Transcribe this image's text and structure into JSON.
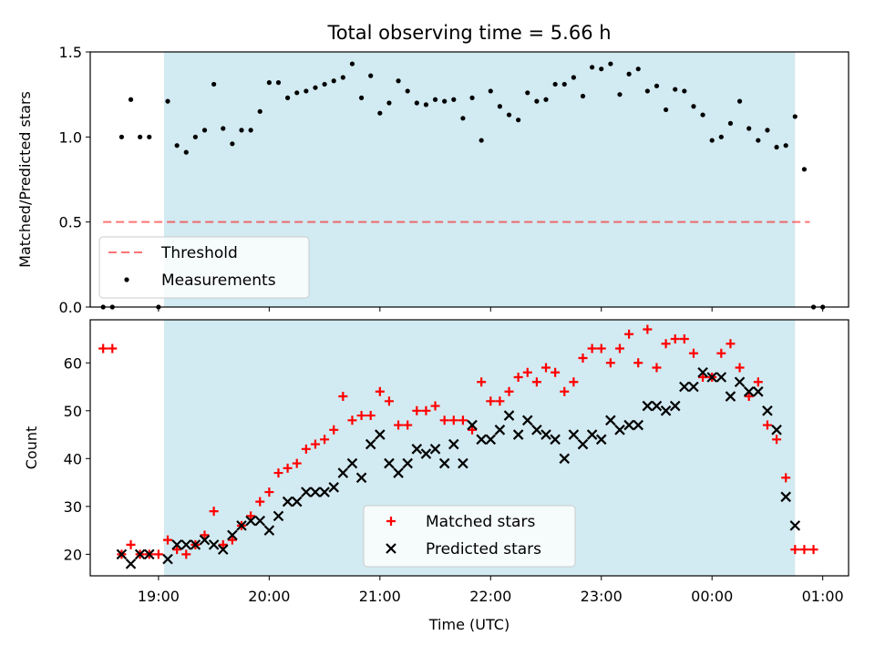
{
  "title": "Total observing time = 5.66 h",
  "colors": {
    "band": "#add8e6",
    "threshold": "#ff0000",
    "measurement": "#000000",
    "matched": "#ff0000",
    "predicted": "#000000"
  },
  "chart_data": [
    {
      "type": "scatter",
      "ylabel": "Matched/Predicted stars",
      "ylim": [
        0,
        1.5
      ],
      "yticks": [
        0.0,
        0.5,
        1.0,
        1.5
      ],
      "ytick_labels": [
        "0.0",
        "0.5",
        "1.0",
        "1.5"
      ],
      "legend": {
        "position": "lower-left"
      },
      "observing_window": [
        "19:03",
        "00:45"
      ],
      "threshold": {
        "name": "Threshold",
        "value": 0.5,
        "x_range": [
          "18:30",
          "00:53"
        ],
        "style": "dashed"
      },
      "series": [
        {
          "name": "Measurements",
          "points": [
            [
              "18:30",
              0.0
            ],
            [
              "18:35",
              0.0
            ],
            [
              "18:40",
              1.0
            ],
            [
              "18:45",
              1.22
            ],
            [
              "18:50",
              1.0
            ],
            [
              "18:55",
              1.0
            ],
            [
              "19:00",
              0.0
            ],
            [
              "19:05",
              1.21
            ],
            [
              "19:10",
              0.95
            ],
            [
              "19:15",
              0.91
            ],
            [
              "19:20",
              1.0
            ],
            [
              "19:25",
              1.04
            ],
            [
              "19:30",
              1.31
            ],
            [
              "19:35",
              1.05
            ],
            [
              "19:40",
              0.96
            ],
            [
              "19:45",
              1.04
            ],
            [
              "19:50",
              1.04
            ],
            [
              "19:55",
              1.15
            ],
            [
              "20:00",
              1.32
            ],
            [
              "20:05",
              1.32
            ],
            [
              "20:10",
              1.23
            ],
            [
              "20:15",
              1.26
            ],
            [
              "20:20",
              1.27
            ],
            [
              "20:25",
              1.29
            ],
            [
              "20:30",
              1.31
            ],
            [
              "20:35",
              1.33
            ],
            [
              "20:40",
              1.35
            ],
            [
              "20:45",
              1.43
            ],
            [
              "20:50",
              1.23
            ],
            [
              "20:55",
              1.36
            ],
            [
              "21:00",
              1.14
            ],
            [
              "21:05",
              1.2
            ],
            [
              "21:10",
              1.33
            ],
            [
              "21:15",
              1.27
            ],
            [
              "21:20",
              1.2
            ],
            [
              "21:25",
              1.19
            ],
            [
              "21:30",
              1.22
            ],
            [
              "21:35",
              1.21
            ],
            [
              "21:40",
              1.22
            ],
            [
              "21:45",
              1.11
            ],
            [
              "21:50",
              1.23
            ],
            [
              "21:55",
              0.98
            ],
            [
              "22:00",
              1.27
            ],
            [
              "22:05",
              1.18
            ],
            [
              "22:10",
              1.13
            ],
            [
              "22:15",
              1.1
            ],
            [
              "22:20",
              1.26
            ],
            [
              "22:25",
              1.21
            ],
            [
              "22:30",
              1.22
            ],
            [
              "22:35",
              1.31
            ],
            [
              "22:40",
              1.31
            ],
            [
              "22:45",
              1.35
            ],
            [
              "22:50",
              1.24
            ],
            [
              "22:55",
              1.41
            ],
            [
              "23:00",
              1.4
            ],
            [
              "23:05",
              1.43
            ],
            [
              "23:10",
              1.25
            ],
            [
              "23:15",
              1.37
            ],
            [
              "23:20",
              1.4
            ],
            [
              "23:25",
              1.27
            ],
            [
              "23:30",
              1.3
            ],
            [
              "23:35",
              1.16
            ],
            [
              "23:40",
              1.28
            ],
            [
              "23:45",
              1.27
            ],
            [
              "23:50",
              1.18
            ],
            [
              "23:55",
              1.13
            ],
            [
              "00:00",
              0.98
            ],
            [
              "00:05",
              1.0
            ],
            [
              "00:10",
              1.08
            ],
            [
              "00:15",
              1.21
            ],
            [
              "00:20",
              1.05
            ],
            [
              "00:25",
              0.98
            ],
            [
              "00:30",
              1.04
            ],
            [
              "00:35",
              0.94
            ],
            [
              "00:40",
              0.95
            ],
            [
              "00:45",
              1.12
            ],
            [
              "00:50",
              0.81
            ],
            [
              "00:55",
              0.0
            ],
            [
              "01:00",
              0.0
            ]
          ]
        }
      ]
    },
    {
      "type": "scatter",
      "xlabel": "Time (UTC)",
      "ylabel": "Count",
      "ylim": [
        15.5,
        69
      ],
      "yticks": [
        20,
        30,
        40,
        50,
        60
      ],
      "ytick_labels": [
        "20",
        "30",
        "40",
        "50",
        "60"
      ],
      "xlim": [
        "18:23",
        "01:14"
      ],
      "xticks": [
        "19:00",
        "20:00",
        "21:00",
        "22:00",
        "23:00",
        "00:00",
        "01:00"
      ],
      "legend": {
        "position": "lower-center"
      },
      "observing_window": [
        "19:03",
        "00:45"
      ],
      "series": [
        {
          "name": "Matched stars",
          "marker": "+",
          "points": [
            [
              "18:30",
              63
            ],
            [
              "18:35",
              63
            ],
            [
              "18:40",
              20
            ],
            [
              "18:45",
              22
            ],
            [
              "18:50",
              20
            ],
            [
              "18:55",
              20
            ],
            [
              "19:00",
              20
            ],
            [
              "19:05",
              23
            ],
            [
              "19:10",
              21
            ],
            [
              "19:15",
              20
            ],
            [
              "19:20",
              22
            ],
            [
              "19:25",
              24
            ],
            [
              "19:30",
              29
            ],
            [
              "19:35",
              22
            ],
            [
              "19:40",
              23
            ],
            [
              "19:45",
              26
            ],
            [
              "19:50",
              28
            ],
            [
              "19:55",
              31
            ],
            [
              "20:00",
              33
            ],
            [
              "20:05",
              37
            ],
            [
              "20:10",
              38
            ],
            [
              "20:15",
              39
            ],
            [
              "20:20",
              42
            ],
            [
              "20:25",
              43
            ],
            [
              "20:30",
              44
            ],
            [
              "20:35",
              46
            ],
            [
              "20:40",
              53
            ],
            [
              "20:45",
              48
            ],
            [
              "20:50",
              49
            ],
            [
              "20:55",
              49
            ],
            [
              "21:00",
              54
            ],
            [
              "21:05",
              52
            ],
            [
              "21:10",
              47
            ],
            [
              "21:15",
              47
            ],
            [
              "21:20",
              50
            ],
            [
              "21:25",
              50
            ],
            [
              "21:30",
              51
            ],
            [
              "21:35",
              48
            ],
            [
              "21:40",
              48
            ],
            [
              "21:45",
              48
            ],
            [
              "21:50",
              46
            ],
            [
              "21:55",
              56
            ],
            [
              "22:00",
              52
            ],
            [
              "22:05",
              52
            ],
            [
              "22:10",
              54
            ],
            [
              "22:15",
              57
            ],
            [
              "22:20",
              58
            ],
            [
              "22:25",
              56
            ],
            [
              "22:30",
              59
            ],
            [
              "22:35",
              58
            ],
            [
              "22:40",
              54
            ],
            [
              "22:45",
              56
            ],
            [
              "22:50",
              61
            ],
            [
              "22:55",
              63
            ],
            [
              "23:00",
              63
            ],
            [
              "23:05",
              60
            ],
            [
              "23:10",
              63
            ],
            [
              "23:15",
              66
            ],
            [
              "23:20",
              60
            ],
            [
              "23:25",
              67
            ],
            [
              "23:30",
              59
            ],
            [
              "23:35",
              64
            ],
            [
              "23:40",
              65
            ],
            [
              "23:45",
              65
            ],
            [
              "23:50",
              62
            ],
            [
              "23:55",
              57
            ],
            [
              "00:00",
              57
            ],
            [
              "00:05",
              62
            ],
            [
              "00:10",
              64
            ],
            [
              "00:15",
              59
            ],
            [
              "00:20",
              53
            ],
            [
              "00:25",
              56
            ],
            [
              "00:30",
              47
            ],
            [
              "00:35",
              44
            ],
            [
              "00:40",
              36
            ],
            [
              "00:45",
              21
            ],
            [
              "00:50",
              21
            ],
            [
              "00:55",
              21
            ]
          ]
        },
        {
          "name": "Predicted stars",
          "marker": "x",
          "points": [
            [
              "18:40",
              20
            ],
            [
              "18:45",
              18
            ],
            [
              "18:50",
              20
            ],
            [
              "18:55",
              20
            ],
            [
              "19:05",
              19
            ],
            [
              "19:10",
              22
            ],
            [
              "19:15",
              22
            ],
            [
              "19:20",
              22
            ],
            [
              "19:25",
              23
            ],
            [
              "19:30",
              22
            ],
            [
              "19:35",
              21
            ],
            [
              "19:40",
              24
            ],
            [
              "19:45",
              26
            ],
            [
              "19:50",
              27
            ],
            [
              "19:55",
              27
            ],
            [
              "20:00",
              25
            ],
            [
              "20:05",
              28
            ],
            [
              "20:10",
              31
            ],
            [
              "20:15",
              31
            ],
            [
              "20:20",
              33
            ],
            [
              "20:25",
              33
            ],
            [
              "20:30",
              33
            ],
            [
              "20:35",
              34
            ],
            [
              "20:40",
              37
            ],
            [
              "20:45",
              39
            ],
            [
              "20:50",
              36
            ],
            [
              "20:55",
              43
            ],
            [
              "21:00",
              45
            ],
            [
              "21:05",
              39
            ],
            [
              "21:10",
              37
            ],
            [
              "21:15",
              39
            ],
            [
              "21:20",
              42
            ],
            [
              "21:25",
              41
            ],
            [
              "21:30",
              42
            ],
            [
              "21:35",
              39
            ],
            [
              "21:40",
              43
            ],
            [
              "21:45",
              39
            ],
            [
              "21:50",
              47
            ],
            [
              "21:55",
              44
            ],
            [
              "22:00",
              44
            ],
            [
              "22:05",
              46
            ],
            [
              "22:10",
              49
            ],
            [
              "22:15",
              45
            ],
            [
              "22:20",
              48
            ],
            [
              "22:25",
              46
            ],
            [
              "22:30",
              45
            ],
            [
              "22:35",
              44
            ],
            [
              "22:40",
              40
            ],
            [
              "22:45",
              45
            ],
            [
              "22:50",
              43
            ],
            [
              "22:55",
              45
            ],
            [
              "23:00",
              44
            ],
            [
              "23:05",
              48
            ],
            [
              "23:10",
              46
            ],
            [
              "23:15",
              47
            ],
            [
              "23:20",
              47
            ],
            [
              "23:25",
              51
            ],
            [
              "23:30",
              51
            ],
            [
              "23:35",
              50
            ],
            [
              "23:40",
              51
            ],
            [
              "23:45",
              55
            ],
            [
              "23:50",
              55
            ],
            [
              "23:55",
              58
            ],
            [
              "00:00",
              57
            ],
            [
              "00:05",
              57
            ],
            [
              "00:10",
              53
            ],
            [
              "00:15",
              56
            ],
            [
              "00:20",
              54
            ],
            [
              "00:25",
              54
            ],
            [
              "00:30",
              50
            ],
            [
              "00:35",
              46
            ],
            [
              "00:40",
              32
            ],
            [
              "00:45",
              26
            ]
          ]
        }
      ]
    }
  ]
}
